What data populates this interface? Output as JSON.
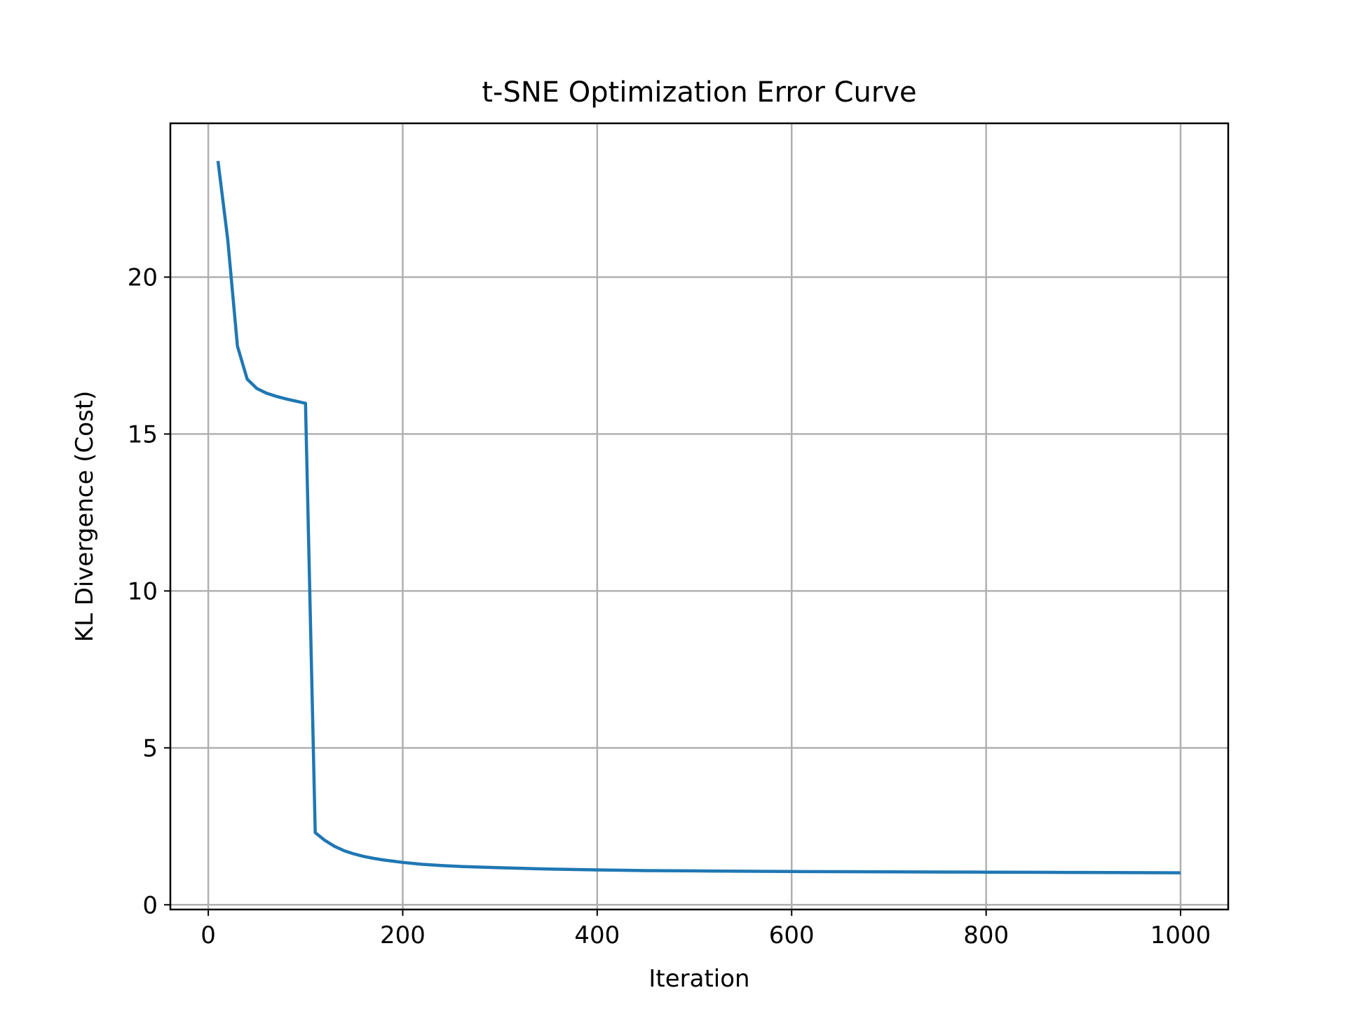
{
  "chart_data": {
    "type": "line",
    "title": "t-SNE Optimization Error Curve",
    "xlabel": "Iteration",
    "ylabel": "KL Divergence (Cost)",
    "xlim": [
      -39,
      1049
    ],
    "ylim": [
      -0.15,
      24.9
    ],
    "xticks": [
      0,
      200,
      400,
      600,
      800,
      1000
    ],
    "yticks": [
      0,
      5,
      10,
      15,
      20
    ],
    "grid": true,
    "series": [
      {
        "color": "#1f77b4",
        "x": [
          10,
          20,
          30,
          40,
          50,
          60,
          70,
          80,
          90,
          100,
          110,
          120,
          130,
          140,
          150,
          160,
          170,
          180,
          190,
          200,
          220,
          240,
          260,
          280,
          300,
          350,
          400,
          450,
          500,
          550,
          600,
          650,
          700,
          750,
          800,
          850,
          900,
          950,
          1000
        ],
        "y": [
          23.7,
          21.2,
          17.8,
          16.75,
          16.45,
          16.3,
          16.2,
          16.12,
          16.05,
          15.98,
          2.3,
          2.05,
          1.86,
          1.72,
          1.62,
          1.54,
          1.48,
          1.43,
          1.39,
          1.35,
          1.29,
          1.25,
          1.22,
          1.2,
          1.18,
          1.14,
          1.11,
          1.09,
          1.08,
          1.07,
          1.06,
          1.055,
          1.05,
          1.045,
          1.04,
          1.035,
          1.03,
          1.025,
          1.02
        ]
      }
    ]
  }
}
